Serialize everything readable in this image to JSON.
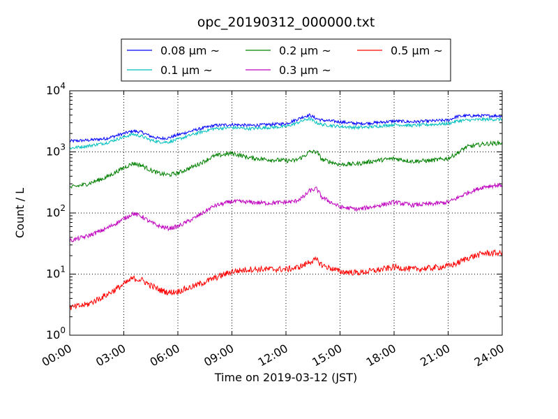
{
  "chart_data": {
    "type": "line",
    "title": "opc_20190312_000000.txt",
    "xlabel": "Time on 2019-03-12 (JST)",
    "ylabel": "Count / L",
    "yscale": "log",
    "xlim": [
      0,
      24
    ],
    "ylim": [
      1,
      10000
    ],
    "xticks": [
      0,
      3,
      6,
      9,
      12,
      15,
      18,
      21,
      24
    ],
    "xtick_labels": [
      "00:00",
      "03:00",
      "06:00",
      "09:00",
      "12:00",
      "15:00",
      "18:00",
      "21:00",
      "24:00"
    ],
    "ytick_labels": [
      {
        "base": "10",
        "exp": "0"
      },
      {
        "base": "10",
        "exp": "1"
      },
      {
        "base": "10",
        "exp": "2"
      },
      {
        "base": "10",
        "exp": "3"
      },
      {
        "base": "10",
        "exp": "4"
      }
    ],
    "grid": true,
    "legend_position": "top",
    "series": [
      {
        "name": "0.08 μm ~",
        "color": "#0000ff",
        "x": [
          0,
          1,
          2,
          3,
          3.5,
          4,
          4.5,
          5,
          5.5,
          6,
          7,
          8,
          9,
          10,
          11,
          12,
          12.5,
          13,
          13.3,
          13.7,
          14,
          15,
          16,
          17,
          18,
          19,
          20,
          21,
          21.5,
          22,
          23,
          24
        ],
        "values": [
          1500,
          1550,
          1650,
          2000,
          2200,
          2100,
          1800,
          1650,
          1700,
          1900,
          2300,
          2700,
          2800,
          2700,
          2800,
          2900,
          3300,
          3800,
          4000,
          3500,
          3300,
          3100,
          2900,
          3000,
          3200,
          3100,
          3200,
          3300,
          3800,
          3900,
          3900,
          3900
        ]
      },
      {
        "name": "0.1 μm ~",
        "color": "#00bfbf",
        "x": [
          0,
          1,
          2,
          3,
          3.5,
          4,
          4.5,
          5,
          5.5,
          6,
          7,
          8,
          9,
          10,
          11,
          12,
          12.5,
          13,
          13.3,
          13.7,
          14,
          15,
          16,
          17,
          18,
          19,
          20,
          21,
          21.5,
          22,
          23,
          24
        ],
        "values": [
          1150,
          1250,
          1400,
          1750,
          1950,
          1800,
          1550,
          1450,
          1450,
          1600,
          2000,
          2400,
          2500,
          2400,
          2500,
          2600,
          2900,
          3300,
          3500,
          3000,
          2800,
          2600,
          2500,
          2600,
          2800,
          2700,
          2800,
          2900,
          3200,
          3300,
          3400,
          3400
        ]
      },
      {
        "name": "0.2 μm ~",
        "color": "#008000",
        "x": [
          0,
          1,
          2,
          3,
          3.5,
          4,
          4.5,
          5,
          5.5,
          6,
          7,
          8,
          9,
          10,
          11,
          12,
          12.5,
          13,
          13.3,
          13.7,
          14,
          15,
          16,
          17,
          18,
          19,
          20,
          21,
          21.5,
          22,
          23,
          24
        ],
        "values": [
          260,
          300,
          380,
          550,
          650,
          600,
          500,
          440,
          420,
          450,
          600,
          850,
          950,
          800,
          750,
          720,
          720,
          850,
          1000,
          1000,
          750,
          620,
          640,
          720,
          780,
          700,
          720,
          780,
          950,
          1200,
          1350,
          1400
        ]
      },
      {
        "name": "0.3 μm ~",
        "color": "#bf00bf",
        "x": [
          0,
          1,
          2,
          3,
          3.5,
          4,
          4.5,
          5,
          5.5,
          6,
          7,
          8,
          9,
          10,
          11,
          12,
          12.5,
          13,
          13.3,
          13.7,
          14,
          15,
          16,
          17,
          18,
          19,
          20,
          21,
          21.5,
          22,
          23,
          24
        ],
        "values": [
          35,
          42,
          55,
          80,
          98,
          88,
          70,
          60,
          56,
          60,
          85,
          130,
          155,
          150,
          145,
          150,
          155,
          185,
          230,
          250,
          180,
          125,
          115,
          130,
          150,
          135,
          140,
          150,
          175,
          210,
          270,
          290
        ]
      },
      {
        "name": "0.5 μm ~",
        "color": "#ff0000",
        "x": [
          0,
          1,
          2,
          3,
          3.5,
          4,
          4.5,
          5,
          5.5,
          6,
          7,
          8,
          9,
          10,
          11,
          12,
          12.5,
          13,
          13.3,
          13.7,
          14,
          15,
          16,
          17,
          18,
          19,
          20,
          21,
          21.5,
          22,
          23,
          24
        ],
        "values": [
          2.8,
          3.2,
          4.5,
          6.8,
          8.5,
          8.0,
          6.5,
          5.5,
          5.0,
          5.2,
          6.5,
          8.5,
          11,
          12,
          12,
          12,
          12.5,
          14,
          16,
          17,
          14,
          11,
          10.5,
          11.5,
          13,
          12,
          12.5,
          13.5,
          15,
          18,
          22,
          22
        ]
      }
    ]
  }
}
